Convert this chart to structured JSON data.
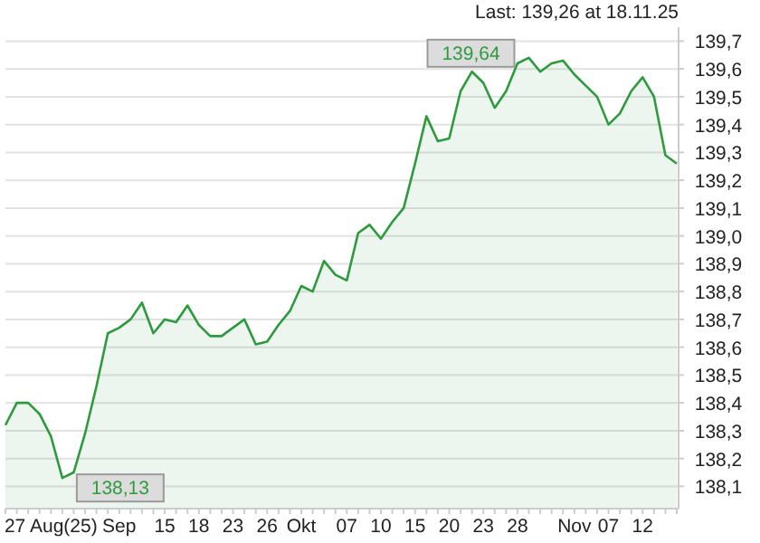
{
  "chart_data": {
    "type": "area",
    "categories": [
      null,
      null,
      null,
      null,
      "27 Aug(25)",
      null,
      null,
      null,
      null,
      null,
      "Sep",
      null,
      null,
      null,
      "15",
      null,
      null,
      "18",
      null,
      null,
      "23",
      null,
      null,
      "26",
      null,
      null,
      "Okt",
      null,
      null,
      null,
      "07",
      null,
      null,
      "10",
      null,
      null,
      "15",
      null,
      null,
      "20",
      null,
      null,
      "23",
      null,
      null,
      "28",
      null,
      null,
      null,
      null,
      "Nov",
      null,
      null,
      "07",
      null,
      null,
      "12",
      null,
      null,
      null
    ],
    "series": [
      {
        "color": "#2e9a3e",
        "values": [
          138.32,
          138.4,
          138.4,
          138.36,
          138.28,
          138.13,
          138.15,
          138.29,
          138.46,
          138.65,
          138.67,
          138.7,
          138.76,
          138.65,
          138.7,
          138.69,
          138.75,
          138.68,
          138.64,
          138.64,
          138.67,
          138.7,
          138.61,
          138.62,
          138.68,
          138.73,
          138.82,
          138.8,
          138.91,
          138.86,
          138.84,
          139.01,
          139.04,
          138.99,
          139.05,
          139.1,
          139.26,
          139.43,
          139.34,
          139.35,
          139.52,
          139.59,
          139.55,
          139.46,
          139.52,
          139.62,
          139.64,
          139.59,
          139.62,
          139.63,
          139.58,
          139.54,
          139.5,
          139.4,
          139.44,
          139.52,
          139.57,
          139.5,
          139.29,
          139.26
        ]
      }
    ],
    "ylim": [
      138.02,
      139.75
    ],
    "yticks": [
      {
        "value": 138.1,
        "label": "138,1"
      },
      {
        "value": 138.2,
        "label": "138,2"
      },
      {
        "value": 138.3,
        "label": "138,3"
      },
      {
        "value": 138.4,
        "label": "138,4"
      },
      {
        "value": 138.5,
        "label": "138,5"
      },
      {
        "value": 138.6,
        "label": "138,6"
      },
      {
        "value": 138.7,
        "label": "138,7"
      },
      {
        "value": 138.8,
        "label": "138,8"
      },
      {
        "value": 138.9,
        "label": "138,9"
      },
      {
        "value": 139.0,
        "label": "139,0"
      },
      {
        "value": 139.1,
        "label": "139,1"
      },
      {
        "value": 139.2,
        "label": "139,2"
      },
      {
        "value": 139.3,
        "label": "139,3"
      },
      {
        "value": 139.4,
        "label": "139,4"
      },
      {
        "value": 139.5,
        "label": "139,5"
      },
      {
        "value": 139.6,
        "label": "139,6"
      },
      {
        "value": 139.7,
        "label": "139,7"
      }
    ],
    "grid": "y",
    "annotations": [
      "Last: 139,26 at 18.11.25",
      "139,64",
      "138,13"
    ]
  }
}
